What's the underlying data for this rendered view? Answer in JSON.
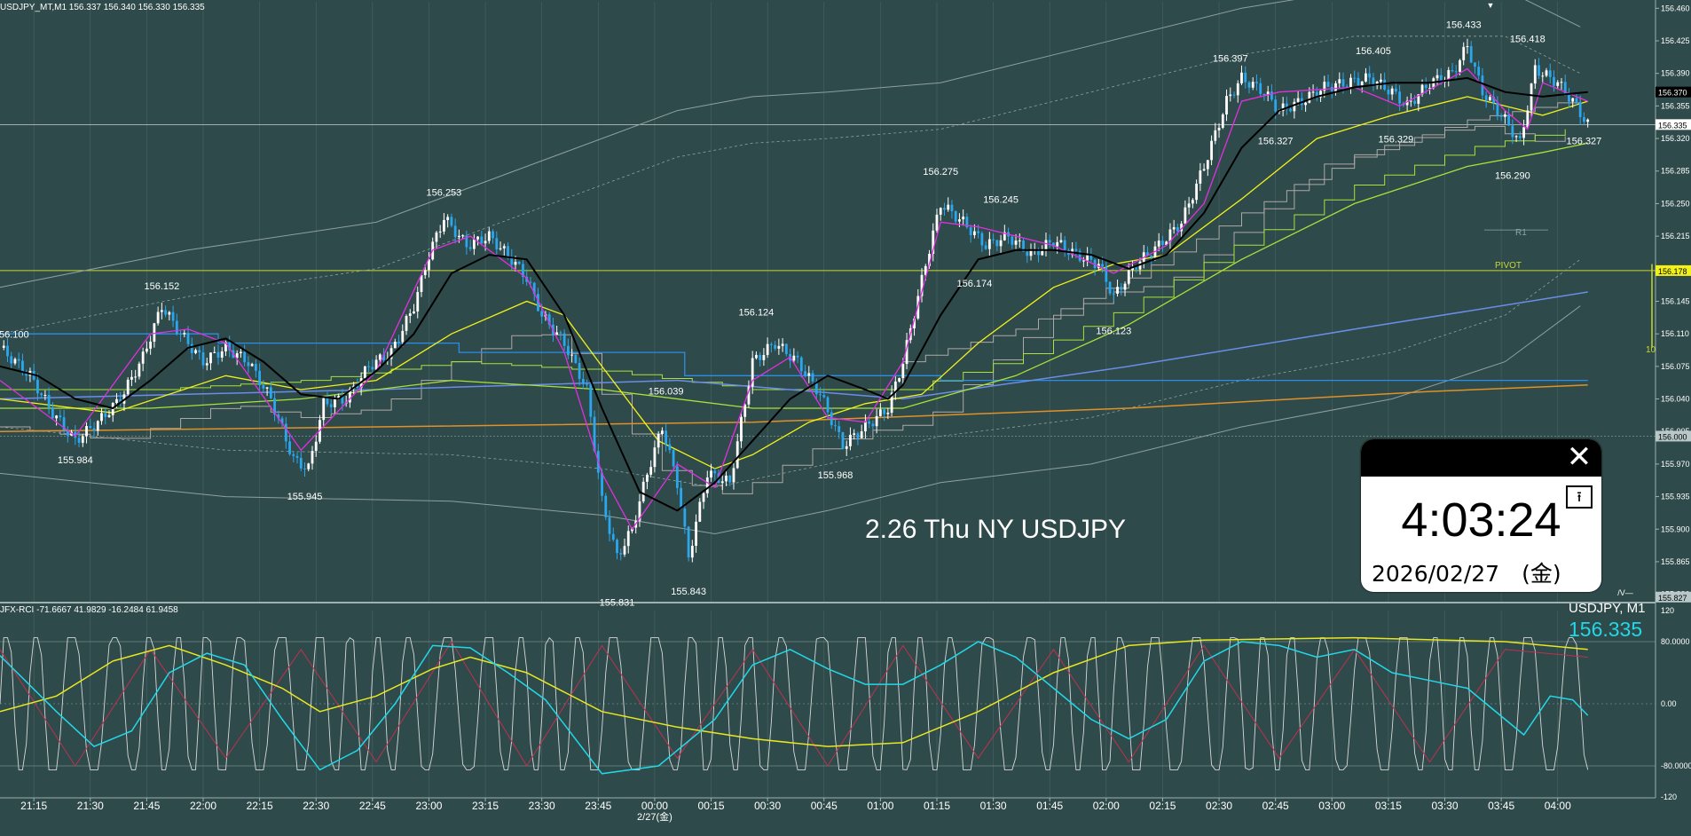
{
  "header": {
    "symbol_line": "USDJPY_MT,M1  156.337 156.340 156.330 156.335",
    "rci_line": "JFX-RCI -71.6667 41.9829 -16.2484 61.9458",
    "symbol_label": "USDJPY, M1",
    "last_price": "156.335"
  },
  "overlay_title": "2.26 Thu NY USDJPY",
  "clock": {
    "time": "4:03:24",
    "date": "2026/02/27　(金)",
    "close_glyph": "✕",
    "pin_glyph": "⭱"
  },
  "chart_data": {
    "type": "line",
    "subtype": "candlestick",
    "y_ticks": [
      "156.460",
      "156.425",
      "156.390",
      "156.355",
      "156.320",
      "156.285",
      "156.250",
      "156.215",
      "156.180",
      "156.145",
      "156.110",
      "156.075",
      "156.040",
      "156.005",
      "155.970",
      "155.935",
      "155.900",
      "155.865",
      "155.830"
    ],
    "ylim": [
      155.822,
      156.467
    ],
    "price_tags": [
      {
        "label": "156.370",
        "value": 156.37,
        "color": "#000000"
      },
      {
        "label": "156.335",
        "value": 156.335,
        "color": "#ffffff"
      },
      {
        "label": "156.178",
        "value": 156.178,
        "color": "#f2f21a"
      },
      {
        "label": "156.000",
        "value": 156.0,
        "color": "#b8c8c8"
      },
      {
        "label": "155.827",
        "value": 155.827,
        "color": "#b8c8c8"
      }
    ],
    "x_ticks": [
      "21:15",
      "21:30",
      "21:45",
      "22:00",
      "22:15",
      "22:30",
      "22:45",
      "23:00",
      "23:15",
      "23:30",
      "23:45",
      "00:00",
      "00:15",
      "00:30",
      "00:45",
      "01:00",
      "01:15",
      "01:30",
      "01:45",
      "02:00",
      "02:15",
      "02:30",
      "02:45",
      "03:00",
      "03:15",
      "03:30",
      "03:45",
      "04:00"
    ],
    "date_label": "2/27(金)",
    "annotations": [
      {
        "label": "156.100",
        "t": 3,
        "v": 156.1
      },
      {
        "label": "155.984",
        "t": 20,
        "v": 155.984
      },
      {
        "label": "156.152",
        "t": 43,
        "v": 156.152
      },
      {
        "label": "155.945",
        "t": 81,
        "v": 155.945
      },
      {
        "label": "156.253",
        "t": 118,
        "v": 156.253
      },
      {
        "label": "155.831",
        "t": 164,
        "v": 155.831
      },
      {
        "label": "155.843",
        "t": 183,
        "v": 155.843
      },
      {
        "label": "156.039",
        "t": 177,
        "v": 156.039
      },
      {
        "label": "156.124",
        "t": 201,
        "v": 156.124
      },
      {
        "label": "155.968",
        "t": 222,
        "v": 155.968
      },
      {
        "label": "156.275",
        "t": 250,
        "v": 156.275
      },
      {
        "label": "156.245",
        "t": 266,
        "v": 156.245
      },
      {
        "label": "156.174",
        "t": 259,
        "v": 156.174
      },
      {
        "label": "156.123",
        "t": 296,
        "v": 156.123
      },
      {
        "label": "156.397",
        "t": 327,
        "v": 156.397
      },
      {
        "label": "156.327",
        "t": 339,
        "v": 156.327
      },
      {
        "label": "156.405",
        "t": 365,
        "v": 156.405
      },
      {
        "label": "156.329",
        "t": 371,
        "v": 156.329
      },
      {
        "label": "156.433",
        "t": 389,
        "v": 156.433
      },
      {
        "label": "156.290",
        "t": 402,
        "v": 156.29
      },
      {
        "label": "156.418",
        "t": 406,
        "v": 156.418
      },
      {
        "label": "156.327",
        "t": 421,
        "v": 156.327
      }
    ],
    "price_path": [
      [
        0,
        156.095
      ],
      [
        8,
        156.065
      ],
      [
        14,
        156.025
      ],
      [
        20,
        155.995
      ],
      [
        26,
        156.015
      ],
      [
        32,
        156.04
      ],
      [
        38,
        156.085
      ],
      [
        43,
        156.14
      ],
      [
        48,
        156.11
      ],
      [
        54,
        156.08
      ],
      [
        60,
        156.095
      ],
      [
        66,
        156.08
      ],
      [
        72,
        156.04
      ],
      [
        78,
        155.975
      ],
      [
        82,
        155.965
      ],
      [
        86,
        156.035
      ],
      [
        92,
        156.04
      ],
      [
        98,
        156.075
      ],
      [
        104,
        156.09
      ],
      [
        110,
        156.14
      ],
      [
        114,
        156.195
      ],
      [
        118,
        156.235
      ],
      [
        124,
        156.205
      ],
      [
        130,
        156.215
      ],
      [
        136,
        156.19
      ],
      [
        140,
        156.17
      ],
      [
        144,
        156.13
      ],
      [
        150,
        156.1
      ],
      [
        156,
        156.05
      ],
      [
        160,
        155.93
      ],
      [
        164,
        155.87
      ],
      [
        168,
        155.9
      ],
      [
        172,
        155.96
      ],
      [
        176,
        156.01
      ],
      [
        180,
        155.95
      ],
      [
        183,
        155.87
      ],
      [
        188,
        155.96
      ],
      [
        194,
        155.95
      ],
      [
        200,
        156.08
      ],
      [
        206,
        156.1
      ],
      [
        212,
        156.08
      ],
      [
        218,
        156.045
      ],
      [
        224,
        155.99
      ],
      [
        230,
        156.01
      ],
      [
        236,
        156.03
      ],
      [
        240,
        156.08
      ],
      [
        246,
        156.185
      ],
      [
        250,
        156.25
      ],
      [
        256,
        156.23
      ],
      [
        262,
        156.205
      ],
      [
        268,
        156.215
      ],
      [
        274,
        156.195
      ],
      [
        280,
        156.21
      ],
      [
        286,
        156.195
      ],
      [
        292,
        156.185
      ],
      [
        296,
        156.15
      ],
      [
        302,
        156.185
      ],
      [
        308,
        156.205
      ],
      [
        314,
        156.23
      ],
      [
        320,
        156.29
      ],
      [
        326,
        156.36
      ],
      [
        330,
        156.385
      ],
      [
        336,
        156.37
      ],
      [
        340,
        156.35
      ],
      [
        346,
        156.36
      ],
      [
        352,
        156.375
      ],
      [
        358,
        156.38
      ],
      [
        364,
        156.385
      ],
      [
        370,
        156.37
      ],
      [
        374,
        156.355
      ],
      [
        380,
        156.38
      ],
      [
        386,
        156.39
      ],
      [
        390,
        156.42
      ],
      [
        394,
        156.37
      ],
      [
        400,
        156.34
      ],
      [
        404,
        156.315
      ],
      [
        408,
        156.395
      ],
      [
        414,
        156.38
      ],
      [
        418,
        156.36
      ],
      [
        422,
        156.335
      ]
    ],
    "ma_black": [
      [
        0,
        156.075
      ],
      [
        10,
        156.065
      ],
      [
        20,
        156.04
      ],
      [
        30,
        156.03
      ],
      [
        40,
        156.06
      ],
      [
        50,
        156.095
      ],
      [
        60,
        156.105
      ],
      [
        70,
        156.08
      ],
      [
        80,
        156.045
      ],
      [
        90,
        156.04
      ],
      [
        100,
        156.07
      ],
      [
        110,
        156.11
      ],
      [
        120,
        156.175
      ],
      [
        130,
        156.195
      ],
      [
        140,
        156.19
      ],
      [
        150,
        156.13
      ],
      [
        160,
        156.03
      ],
      [
        170,
        155.94
      ],
      [
        180,
        155.92
      ],
      [
        190,
        155.95
      ],
      [
        200,
        155.995
      ],
      [
        210,
        156.04
      ],
      [
        220,
        156.065
      ],
      [
        230,
        156.05
      ],
      [
        236,
        156.04
      ],
      [
        240,
        156.055
      ],
      [
        250,
        156.13
      ],
      [
        260,
        156.19
      ],
      [
        270,
        156.2
      ],
      [
        280,
        156.2
      ],
      [
        290,
        156.195
      ],
      [
        300,
        156.18
      ],
      [
        310,
        156.195
      ],
      [
        320,
        156.24
      ],
      [
        330,
        156.31
      ],
      [
        340,
        156.35
      ],
      [
        350,
        156.365
      ],
      [
        360,
        156.375
      ],
      [
        370,
        156.38
      ],
      [
        380,
        156.38
      ],
      [
        390,
        156.385
      ],
      [
        400,
        156.37
      ],
      [
        410,
        156.365
      ],
      [
        422,
        156.37
      ]
    ],
    "ma_magenta": [
      [
        0,
        156.06
      ],
      [
        20,
        156.0
      ],
      [
        40,
        156.11
      ],
      [
        50,
        156.115
      ],
      [
        60,
        156.1
      ],
      [
        80,
        155.985
      ],
      [
        100,
        156.07
      ],
      [
        115,
        156.2
      ],
      [
        125,
        156.215
      ],
      [
        140,
        156.17
      ],
      [
        150,
        156.09
      ],
      [
        160,
        155.96
      ],
      [
        168,
        155.9
      ],
      [
        180,
        155.97
      ],
      [
        190,
        155.945
      ],
      [
        200,
        156.06
      ],
      [
        210,
        156.085
      ],
      [
        220,
        156.02
      ],
      [
        230,
        156.015
      ],
      [
        240,
        156.08
      ],
      [
        250,
        156.23
      ],
      [
        260,
        156.225
      ],
      [
        280,
        156.205
      ],
      [
        296,
        156.175
      ],
      [
        310,
        156.205
      ],
      [
        320,
        156.25
      ],
      [
        330,
        156.36
      ],
      [
        340,
        156.37
      ],
      [
        360,
        156.375
      ],
      [
        372,
        156.355
      ],
      [
        390,
        156.395
      ],
      [
        400,
        156.35
      ],
      [
        406,
        156.33
      ],
      [
        410,
        156.38
      ],
      [
        422,
        156.36
      ]
    ],
    "ma_yellow": [
      [
        0,
        156.04
      ],
      [
        30,
        156.025
      ],
      [
        60,
        156.065
      ],
      [
        80,
        156.05
      ],
      [
        100,
        156.06
      ],
      [
        120,
        156.11
      ],
      [
        140,
        156.145
      ],
      [
        150,
        156.13
      ],
      [
        160,
        156.075
      ],
      [
        175,
        155.995
      ],
      [
        190,
        155.965
      ],
      [
        200,
        155.98
      ],
      [
        215,
        156.015
      ],
      [
        230,
        156.035
      ],
      [
        245,
        156.045
      ],
      [
        260,
        156.1
      ],
      [
        280,
        156.16
      ],
      [
        296,
        156.185
      ],
      [
        310,
        156.195
      ],
      [
        330,
        156.255
      ],
      [
        350,
        156.32
      ],
      [
        370,
        156.345
      ],
      [
        390,
        156.365
      ],
      [
        410,
        156.345
      ],
      [
        422,
        156.36
      ]
    ],
    "ma_green": [
      [
        0,
        156.03
      ],
      [
        40,
        156.03
      ],
      [
        80,
        156.04
      ],
      [
        120,
        156.06
      ],
      [
        160,
        156.05
      ],
      [
        200,
        156.03
      ],
      [
        240,
        156.03
      ],
      [
        270,
        156.065
      ],
      [
        300,
        156.12
      ],
      [
        330,
        156.19
      ],
      [
        360,
        156.25
      ],
      [
        390,
        156.29
      ],
      [
        410,
        156.305
      ],
      [
        422,
        156.315
      ]
    ],
    "ma_orange": [
      [
        0,
        156.005
      ],
      [
        100,
        156.01
      ],
      [
        200,
        156.015
      ],
      [
        300,
        156.03
      ],
      [
        380,
        156.048
      ],
      [
        422,
        156.055
      ]
    ],
    "ma_blue_flat": [
      [
        0,
        156.11
      ],
      [
        55,
        156.11
      ],
      [
        58,
        156.1
      ],
      [
        120,
        156.1
      ],
      [
        122,
        156.09
      ],
      [
        180,
        156.09
      ],
      [
        182,
        156.065
      ],
      [
        240,
        156.065
      ],
      [
        250,
        156.06
      ],
      [
        422,
        156.06
      ]
    ],
    "ma_blue_rising": [
      [
        0,
        156.04
      ],
      [
        100,
        156.05
      ],
      [
        180,
        156.06
      ],
      [
        240,
        156.04
      ],
      [
        300,
        156.075
      ],
      [
        360,
        156.115
      ],
      [
        422,
        156.155
      ]
    ],
    "envelope_upper": [
      [
        0,
        156.16
      ],
      [
        50,
        156.2
      ],
      [
        100,
        156.23
      ],
      [
        140,
        156.29
      ],
      [
        180,
        156.35
      ],
      [
        200,
        156.365
      ],
      [
        220,
        156.37
      ],
      [
        250,
        156.38
      ],
      [
        290,
        156.42
      ],
      [
        330,
        156.46
      ],
      [
        360,
        156.48
      ],
      [
        400,
        156.48
      ],
      [
        420,
        156.44
      ]
    ],
    "envelope_lower": [
      [
        0,
        155.96
      ],
      [
        60,
        155.935
      ],
      [
        120,
        155.93
      ],
      [
        160,
        155.915
      ],
      [
        190,
        155.895
      ],
      [
        220,
        155.92
      ],
      [
        250,
        155.95
      ],
      [
        290,
        155.97
      ],
      [
        330,
        156.01
      ],
      [
        370,
        156.04
      ],
      [
        400,
        156.08
      ],
      [
        420,
        156.14
      ]
    ]
  },
  "rci_data": {
    "ticks": [
      "120",
      "80.0000",
      "0.00",
      "-80.0000",
      "-120"
    ],
    "ylim": [
      -120,
      120
    ],
    "cyan": [
      [
        0,
        62
      ],
      [
        15,
        -10
      ],
      [
        25,
        -55
      ],
      [
        35,
        -35
      ],
      [
        45,
        40
      ],
      [
        55,
        65
      ],
      [
        65,
        50
      ],
      [
        75,
        -20
      ],
      [
        85,
        -85
      ],
      [
        95,
        -60
      ],
      [
        105,
        0
      ],
      [
        115,
        75
      ],
      [
        125,
        72
      ],
      [
        135,
        40
      ],
      [
        145,
        5
      ],
      [
        160,
        -90
      ],
      [
        175,
        -80
      ],
      [
        190,
        -20
      ],
      [
        200,
        50
      ],
      [
        210,
        70
      ],
      [
        220,
        45
      ],
      [
        230,
        25
      ],
      [
        240,
        25
      ],
      [
        250,
        50
      ],
      [
        260,
        80
      ],
      [
        270,
        60
      ],
      [
        280,
        20
      ],
      [
        290,
        -20
      ],
      [
        300,
        -45
      ],
      [
        310,
        -20
      ],
      [
        320,
        55
      ],
      [
        330,
        80
      ],
      [
        340,
        75
      ],
      [
        350,
        60
      ],
      [
        360,
        70
      ],
      [
        370,
        40
      ],
      [
        380,
        30
      ],
      [
        390,
        20
      ],
      [
        400,
        -20
      ],
      [
        405,
        -40
      ],
      [
        412,
        10
      ],
      [
        418,
        5
      ],
      [
        422,
        -15
      ]
    ],
    "yellow": [
      [
        0,
        -10
      ],
      [
        15,
        10
      ],
      [
        30,
        55
      ],
      [
        45,
        75
      ],
      [
        60,
        50
      ],
      [
        75,
        20
      ],
      [
        85,
        -10
      ],
      [
        100,
        10
      ],
      [
        115,
        45
      ],
      [
        125,
        60
      ],
      [
        140,
        40
      ],
      [
        160,
        -10
      ],
      [
        180,
        -30
      ],
      [
        200,
        -45
      ],
      [
        220,
        -55
      ],
      [
        240,
        -50
      ],
      [
        260,
        -10
      ],
      [
        280,
        40
      ],
      [
        300,
        75
      ],
      [
        320,
        82
      ],
      [
        360,
        85
      ],
      [
        400,
        80
      ],
      [
        422,
        70
      ]
    ],
    "red": [
      [
        0,
        70
      ],
      [
        20,
        -80
      ],
      [
        40,
        70
      ],
      [
        60,
        -70
      ],
      [
        80,
        70
      ],
      [
        100,
        -75
      ],
      [
        120,
        80
      ],
      [
        140,
        -80
      ],
      [
        160,
        75
      ],
      [
        180,
        -70
      ],
      [
        200,
        70
      ],
      [
        220,
        -80
      ],
      [
        240,
        75
      ],
      [
        260,
        -70
      ],
      [
        280,
        70
      ],
      [
        300,
        -75
      ],
      [
        320,
        75
      ],
      [
        340,
        -70
      ],
      [
        360,
        70
      ],
      [
        380,
        -75
      ],
      [
        400,
        70
      ],
      [
        422,
        60
      ]
    ],
    "white_period": 9,
    "white_amplitude": 85
  },
  "colors": {
    "background": "#2f4a4a",
    "grid": "#4a6464",
    "candle_up": "#ffffff",
    "candle_down": "#2aa7ee",
    "ma_black": "#000000",
    "ma_magenta": "#e030e0",
    "ma_yellow": "#f2f21a",
    "ma_green": "#a8e23a",
    "ma_orange": "#e0912a",
    "ma_blue": "#2a8ee8",
    "ma_blue_rising": "#6a8ee8",
    "pivot": "#c8d830",
    "rci_cyan": "#22d8e8",
    "rci_yellow": "#e8e820",
    "rci_red": "#c03050",
    "rci_white": "#d8d8d8"
  },
  "pivot": {
    "label": "PIVOT",
    "value": 156.178,
    "side_label": "10"
  },
  "r1": {
    "label": "R1",
    "value": 156.215
  },
  "top_marker": "▼"
}
